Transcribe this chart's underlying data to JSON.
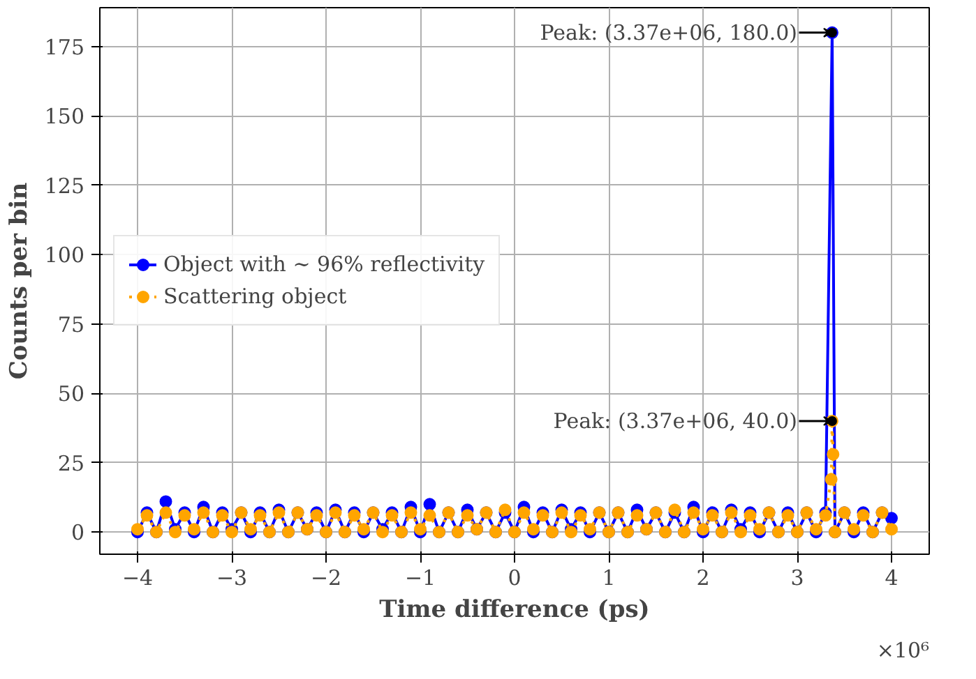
{
  "chart_data": {
    "type": "line",
    "xlabel": "Time difference (ps)",
    "ylabel": "Counts per bin",
    "xlim": [
      -4.4,
      4.4
    ],
    "ylim": [
      -8,
      189
    ],
    "xticks": [
      {
        "value": -4,
        "label": "−4"
      },
      {
        "value": -3,
        "label": "−3"
      },
      {
        "value": -2,
        "label": "−2"
      },
      {
        "value": -1,
        "label": "−1"
      },
      0,
      1,
      2,
      3,
      4
    ],
    "yticks": [
      0,
      25,
      50,
      75,
      100,
      125,
      150,
      175
    ],
    "grid": true,
    "legend": "left",
    "marker": "circle",
    "annotations": [
      "×10⁶",
      {
        "text": "Peak: (3.37e+06, 180.0)",
        "x": 3.37,
        "y": 180
      },
      {
        "text": "Peak: (3.37e+06, 40.0)",
        "x": 3.37,
        "y": 40
      }
    ],
    "series": [
      {
        "name": "Object with ∼ 96% reflectivity",
        "color": "#0000ff",
        "line_style": "solid",
        "x": [
          -4.0,
          -3.9,
          -3.8,
          -3.7,
          -3.6,
          -3.5,
          -3.4,
          -3.3,
          -3.2,
          -3.1,
          -3.0,
          -2.9,
          -2.8,
          -2.7,
          -2.6,
          -2.5,
          -2.4,
          -2.3,
          -2.2,
          -2.1,
          -2.0,
          -1.9,
          -1.8,
          -1.7,
          -1.6,
          -1.5,
          -1.4,
          -1.3,
          -1.2,
          -1.1,
          -1.0,
          -0.9,
          -0.8,
          -0.7,
          -0.6,
          -0.5,
          -0.4,
          -0.3,
          -0.2,
          -0.1,
          0.0,
          0.1,
          0.2,
          0.3,
          0.4,
          0.5,
          0.6,
          0.7,
          0.8,
          0.9,
          1.0,
          1.1,
          1.2,
          1.3,
          1.4,
          1.5,
          1.6,
          1.7,
          1.8,
          1.9,
          2.0,
          2.1,
          2.2,
          2.3,
          2.4,
          2.5,
          2.6,
          2.7,
          2.8,
          2.9,
          3.0,
          3.1,
          3.2,
          3.3,
          3.37,
          3.4,
          3.5,
          3.6,
          3.7,
          3.8,
          3.9,
          4.0
        ],
        "values": [
          0,
          7,
          0,
          11,
          1,
          7,
          0,
          9,
          0,
          7,
          1,
          7,
          0,
          7,
          0,
          8,
          0,
          7,
          1,
          7,
          0,
          8,
          0,
          7,
          0,
          7,
          1,
          7,
          0,
          9,
          0,
          10,
          0,
          7,
          0,
          8,
          1,
          7,
          0,
          7,
          0,
          9,
          0,
          7,
          0,
          8,
          1,
          7,
          0,
          7,
          0,
          7,
          0,
          8,
          1,
          7,
          0,
          7,
          0,
          9,
          0,
          7,
          0,
          8,
          1,
          7,
          0,
          7,
          0,
          7,
          0,
          7,
          0,
          7,
          180,
          0,
          7,
          0,
          7,
          0,
          7,
          5
        ]
      },
      {
        "name": "Scattering object",
        "color": "#ffa500",
        "line_style": "dotted",
        "x": [
          -4.0,
          -3.9,
          -3.8,
          -3.7,
          -3.6,
          -3.5,
          -3.4,
          -3.3,
          -3.2,
          -3.1,
          -3.0,
          -2.9,
          -2.8,
          -2.7,
          -2.6,
          -2.5,
          -2.4,
          -2.3,
          -2.2,
          -2.1,
          -2.0,
          -1.9,
          -1.8,
          -1.7,
          -1.6,
          -1.5,
          -1.4,
          -1.3,
          -1.2,
          -1.1,
          -1.0,
          -0.9,
          -0.8,
          -0.7,
          -0.6,
          -0.5,
          -0.4,
          -0.3,
          -0.2,
          -0.1,
          0.0,
          0.1,
          0.2,
          0.3,
          0.4,
          0.5,
          0.6,
          0.7,
          0.8,
          0.9,
          1.0,
          1.1,
          1.2,
          1.3,
          1.4,
          1.5,
          1.6,
          1.7,
          1.8,
          1.9,
          2.0,
          2.1,
          2.2,
          2.3,
          2.4,
          2.5,
          2.6,
          2.7,
          2.8,
          2.9,
          3.0,
          3.1,
          3.2,
          3.3,
          3.36,
          3.37,
          3.38,
          3.4,
          3.5,
          3.6,
          3.7,
          3.8,
          3.9,
          4.0
        ],
        "values": [
          1,
          6,
          0,
          7,
          0,
          6,
          1,
          7,
          0,
          6,
          0,
          7,
          1,
          6,
          0,
          7,
          0,
          7,
          1,
          6,
          0,
          7,
          0,
          6,
          1,
          7,
          0,
          6,
          0,
          7,
          1,
          6,
          0,
          7,
          0,
          6,
          1,
          7,
          0,
          8,
          0,
          7,
          1,
          6,
          0,
          7,
          0,
          6,
          1,
          7,
          0,
          7,
          0,
          6,
          1,
          7,
          0,
          8,
          0,
          7,
          1,
          6,
          0,
          7,
          0,
          6,
          1,
          7,
          0,
          6,
          0,
          7,
          1,
          6,
          19,
          40,
          28,
          0,
          7,
          1,
          6,
          0,
          7,
          1
        ]
      }
    ]
  }
}
